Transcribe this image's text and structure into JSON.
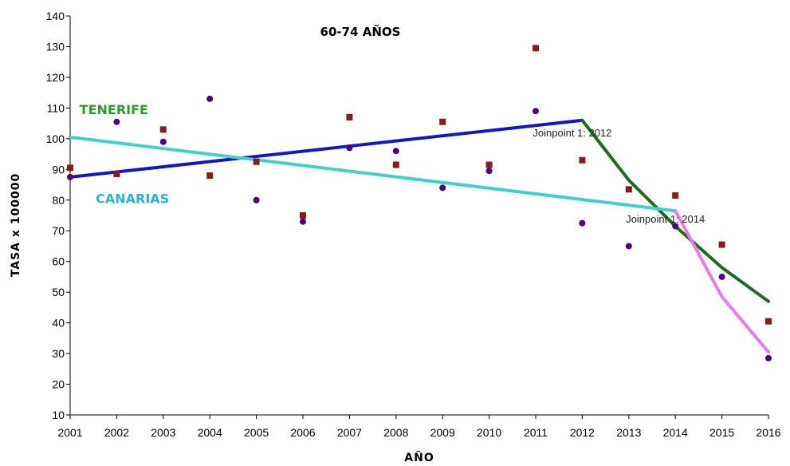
{
  "chart_data": {
    "type": "scatter",
    "title": "60-74 AÑOS",
    "xlabel": "AÑO",
    "ylabel": "TASA x 100000",
    "xlim": [
      2001,
      2016
    ],
    "ylim": [
      10,
      140
    ],
    "yticks": [
      10,
      20,
      30,
      40,
      50,
      60,
      70,
      80,
      90,
      100,
      110,
      120,
      130,
      140
    ],
    "xticks": [
      2001,
      2002,
      2003,
      2004,
      2005,
      2006,
      2007,
      2008,
      2009,
      2010,
      2011,
      2012,
      2013,
      2014,
      2015,
      2016
    ],
    "grid": false,
    "series": [
      {
        "name": "TENERIFE",
        "color": "#8b1a1a",
        "marker": "square",
        "x": [
          2001,
          2002,
          2003,
          2004,
          2005,
          2006,
          2007,
          2008,
          2009,
          2010,
          2011,
          2012,
          2013,
          2014,
          2015,
          2016
        ],
        "y": [
          90.5,
          88.5,
          103,
          88,
          92.5,
          75,
          107,
          91.5,
          105.5,
          91.5,
          129.5,
          93,
          83.5,
          81.5,
          65.5,
          40.5
        ]
      },
      {
        "name": "CANARIAS",
        "color": "#4b0082",
        "marker": "circle",
        "x": [
          2001,
          2002,
          2003,
          2004,
          2005,
          2006,
          2007,
          2008,
          2009,
          2010,
          2011,
          2012,
          2013,
          2014,
          2015,
          2016
        ],
        "y": [
          87.5,
          105.5,
          99,
          113,
          80,
          73,
          97,
          96,
          84,
          89.5,
          109,
          72.5,
          65,
          71.5,
          55,
          28.5
        ]
      }
    ],
    "trend_lines": [
      {
        "series": "TENERIFE",
        "segment": 1,
        "color": "#1414c8",
        "x": [
          2001,
          2012
        ],
        "y": [
          87.5,
          106
        ]
      },
      {
        "series": "TENERIFE",
        "segment": 2,
        "color": "#1e6a1e",
        "x": [
          2012,
          2013,
          2014,
          2015,
          2016
        ],
        "y": [
          106,
          86.5,
          71.5,
          58,
          47
        ]
      },
      {
        "series": "CANARIAS",
        "segment": 1,
        "color": "#40d0c8",
        "x": [
          2001,
          2014
        ],
        "y": [
          100.5,
          76.5
        ]
      },
      {
        "series": "CANARIAS",
        "segment": 2,
        "color": "#ea7ae8",
        "x": [
          2014,
          2015,
          2016
        ],
        "y": [
          76.5,
          48.5,
          30.5
        ]
      }
    ],
    "series_labels": [
      {
        "text": "TENERIFE",
        "color": "#2e9a2e",
        "anchor_x": 2001.2,
        "anchor_y": 108
      },
      {
        "text": "CANARIAS",
        "color": "#2ab0d6",
        "anchor_x": 2001.55,
        "anchor_y": 79
      }
    ],
    "annotations": [
      {
        "text": "Joinpoint 1:  2012",
        "x": 2012,
        "y": 102
      },
      {
        "text": "Joinpoint 1:  2014",
        "x": 2014,
        "y": 74
      }
    ]
  }
}
